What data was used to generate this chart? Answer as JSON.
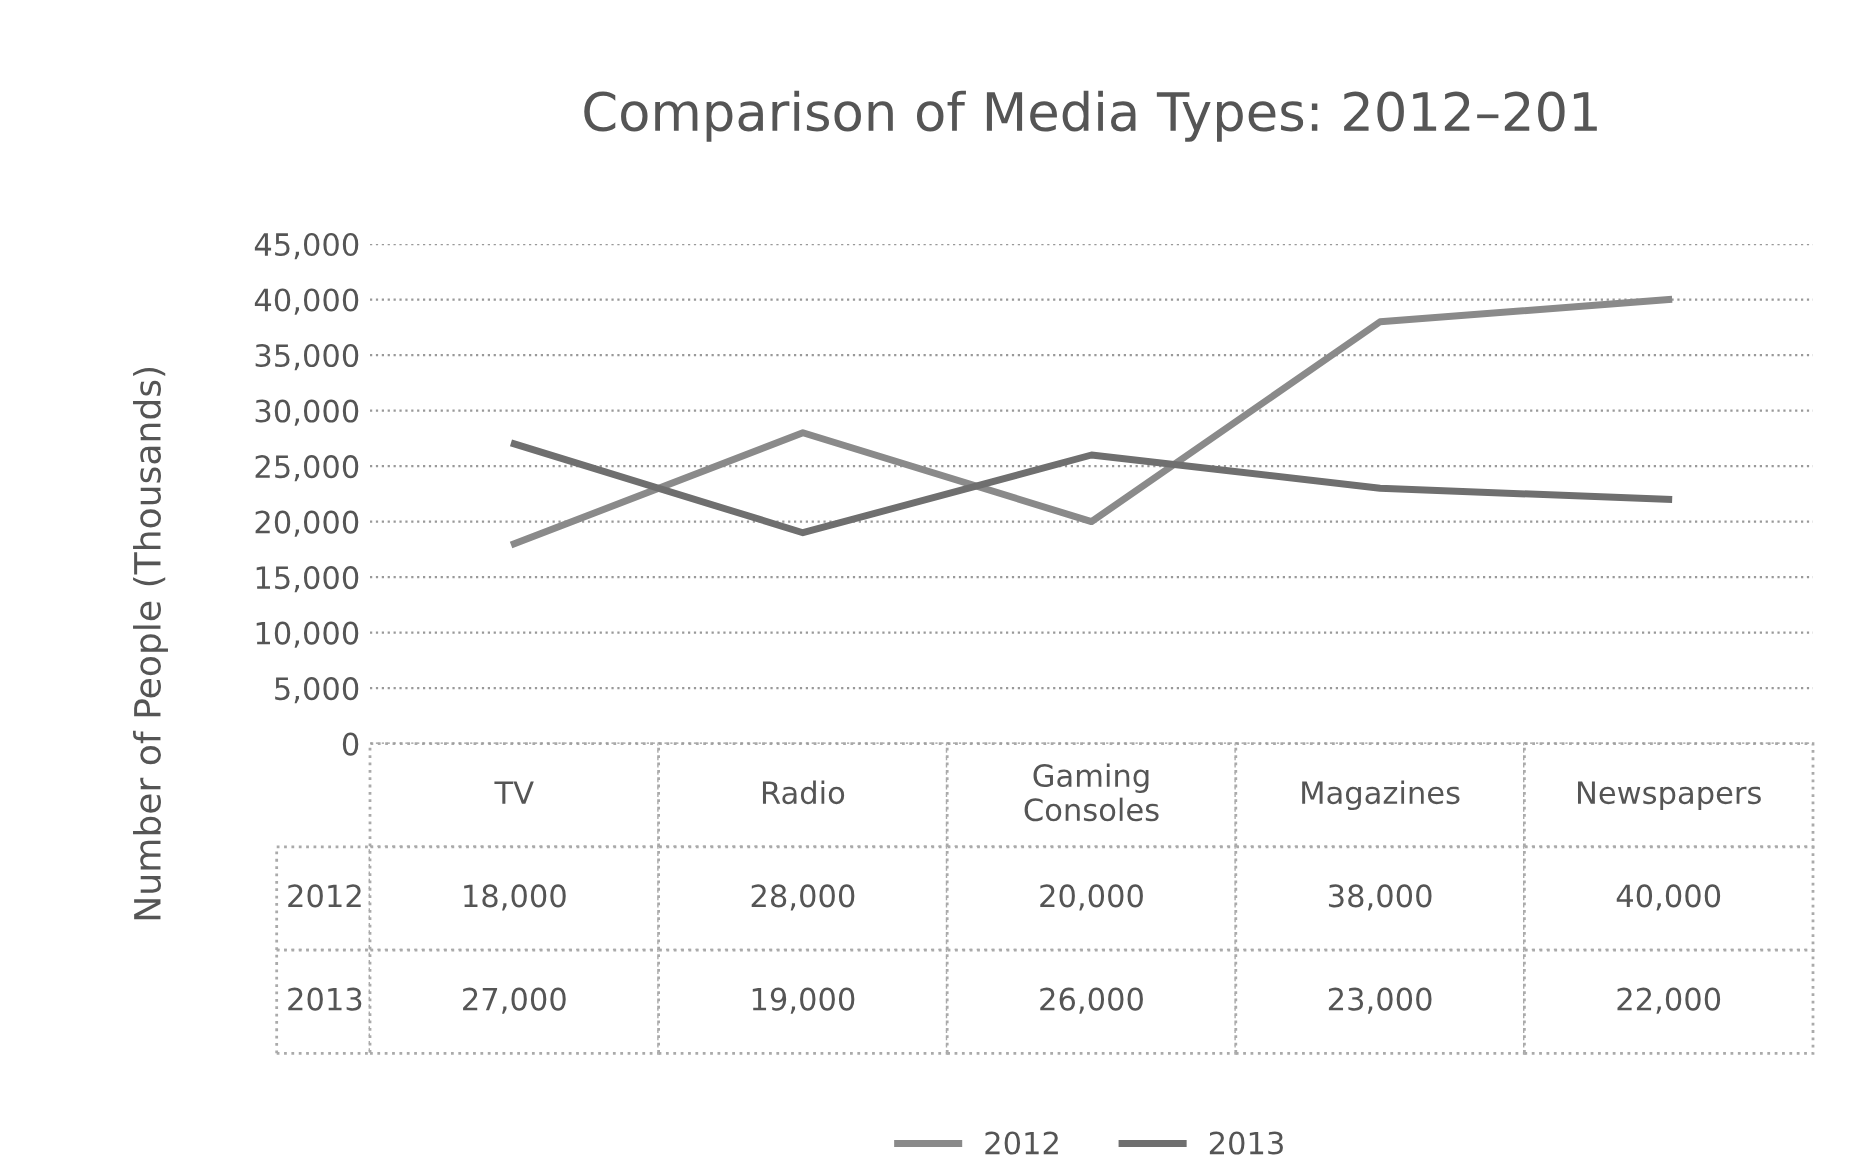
{
  "chart_data": {
    "type": "line",
    "title": "Comparison of Media Types: 2012–201",
    "ylabel": "Number of People (Thousands)",
    "categories": [
      "TV",
      "Radio",
      "Gaming\nConsoles",
      "Magazines",
      "Newspapers"
    ],
    "series": [
      {
        "name": "2012",
        "color": "#8a8a8a",
        "values": [
          18000,
          28000,
          20000,
          38000,
          40000
        ],
        "value_labels": [
          "18,000",
          "28,000",
          "20,000",
          "38,000",
          "40,000"
        ]
      },
      {
        "name": "2013",
        "color": "#6f6f6f",
        "values": [
          27000,
          19000,
          26000,
          23000,
          22000
        ],
        "value_labels": [
          "27,000",
          "19,000",
          "26,000",
          "23,000",
          "22,000"
        ]
      }
    ],
    "ylim": [
      0,
      45000
    ],
    "yticks": [
      {
        "value": 0,
        "label": "0"
      },
      {
        "value": 5000,
        "label": "5,000"
      },
      {
        "value": 10000,
        "label": "10,000"
      },
      {
        "value": 15000,
        "label": "15,000"
      },
      {
        "value": 20000,
        "label": "20,000"
      },
      {
        "value": 25000,
        "label": "25,000"
      },
      {
        "value": 30000,
        "label": "30,000"
      },
      {
        "value": 35000,
        "label": "35,000"
      },
      {
        "value": 40000,
        "label": "40,000"
      },
      {
        "value": 45000,
        "label": "45,000"
      }
    ],
    "grid": "y",
    "legend": "bottom",
    "marker": "none",
    "line_style": "solid"
  }
}
